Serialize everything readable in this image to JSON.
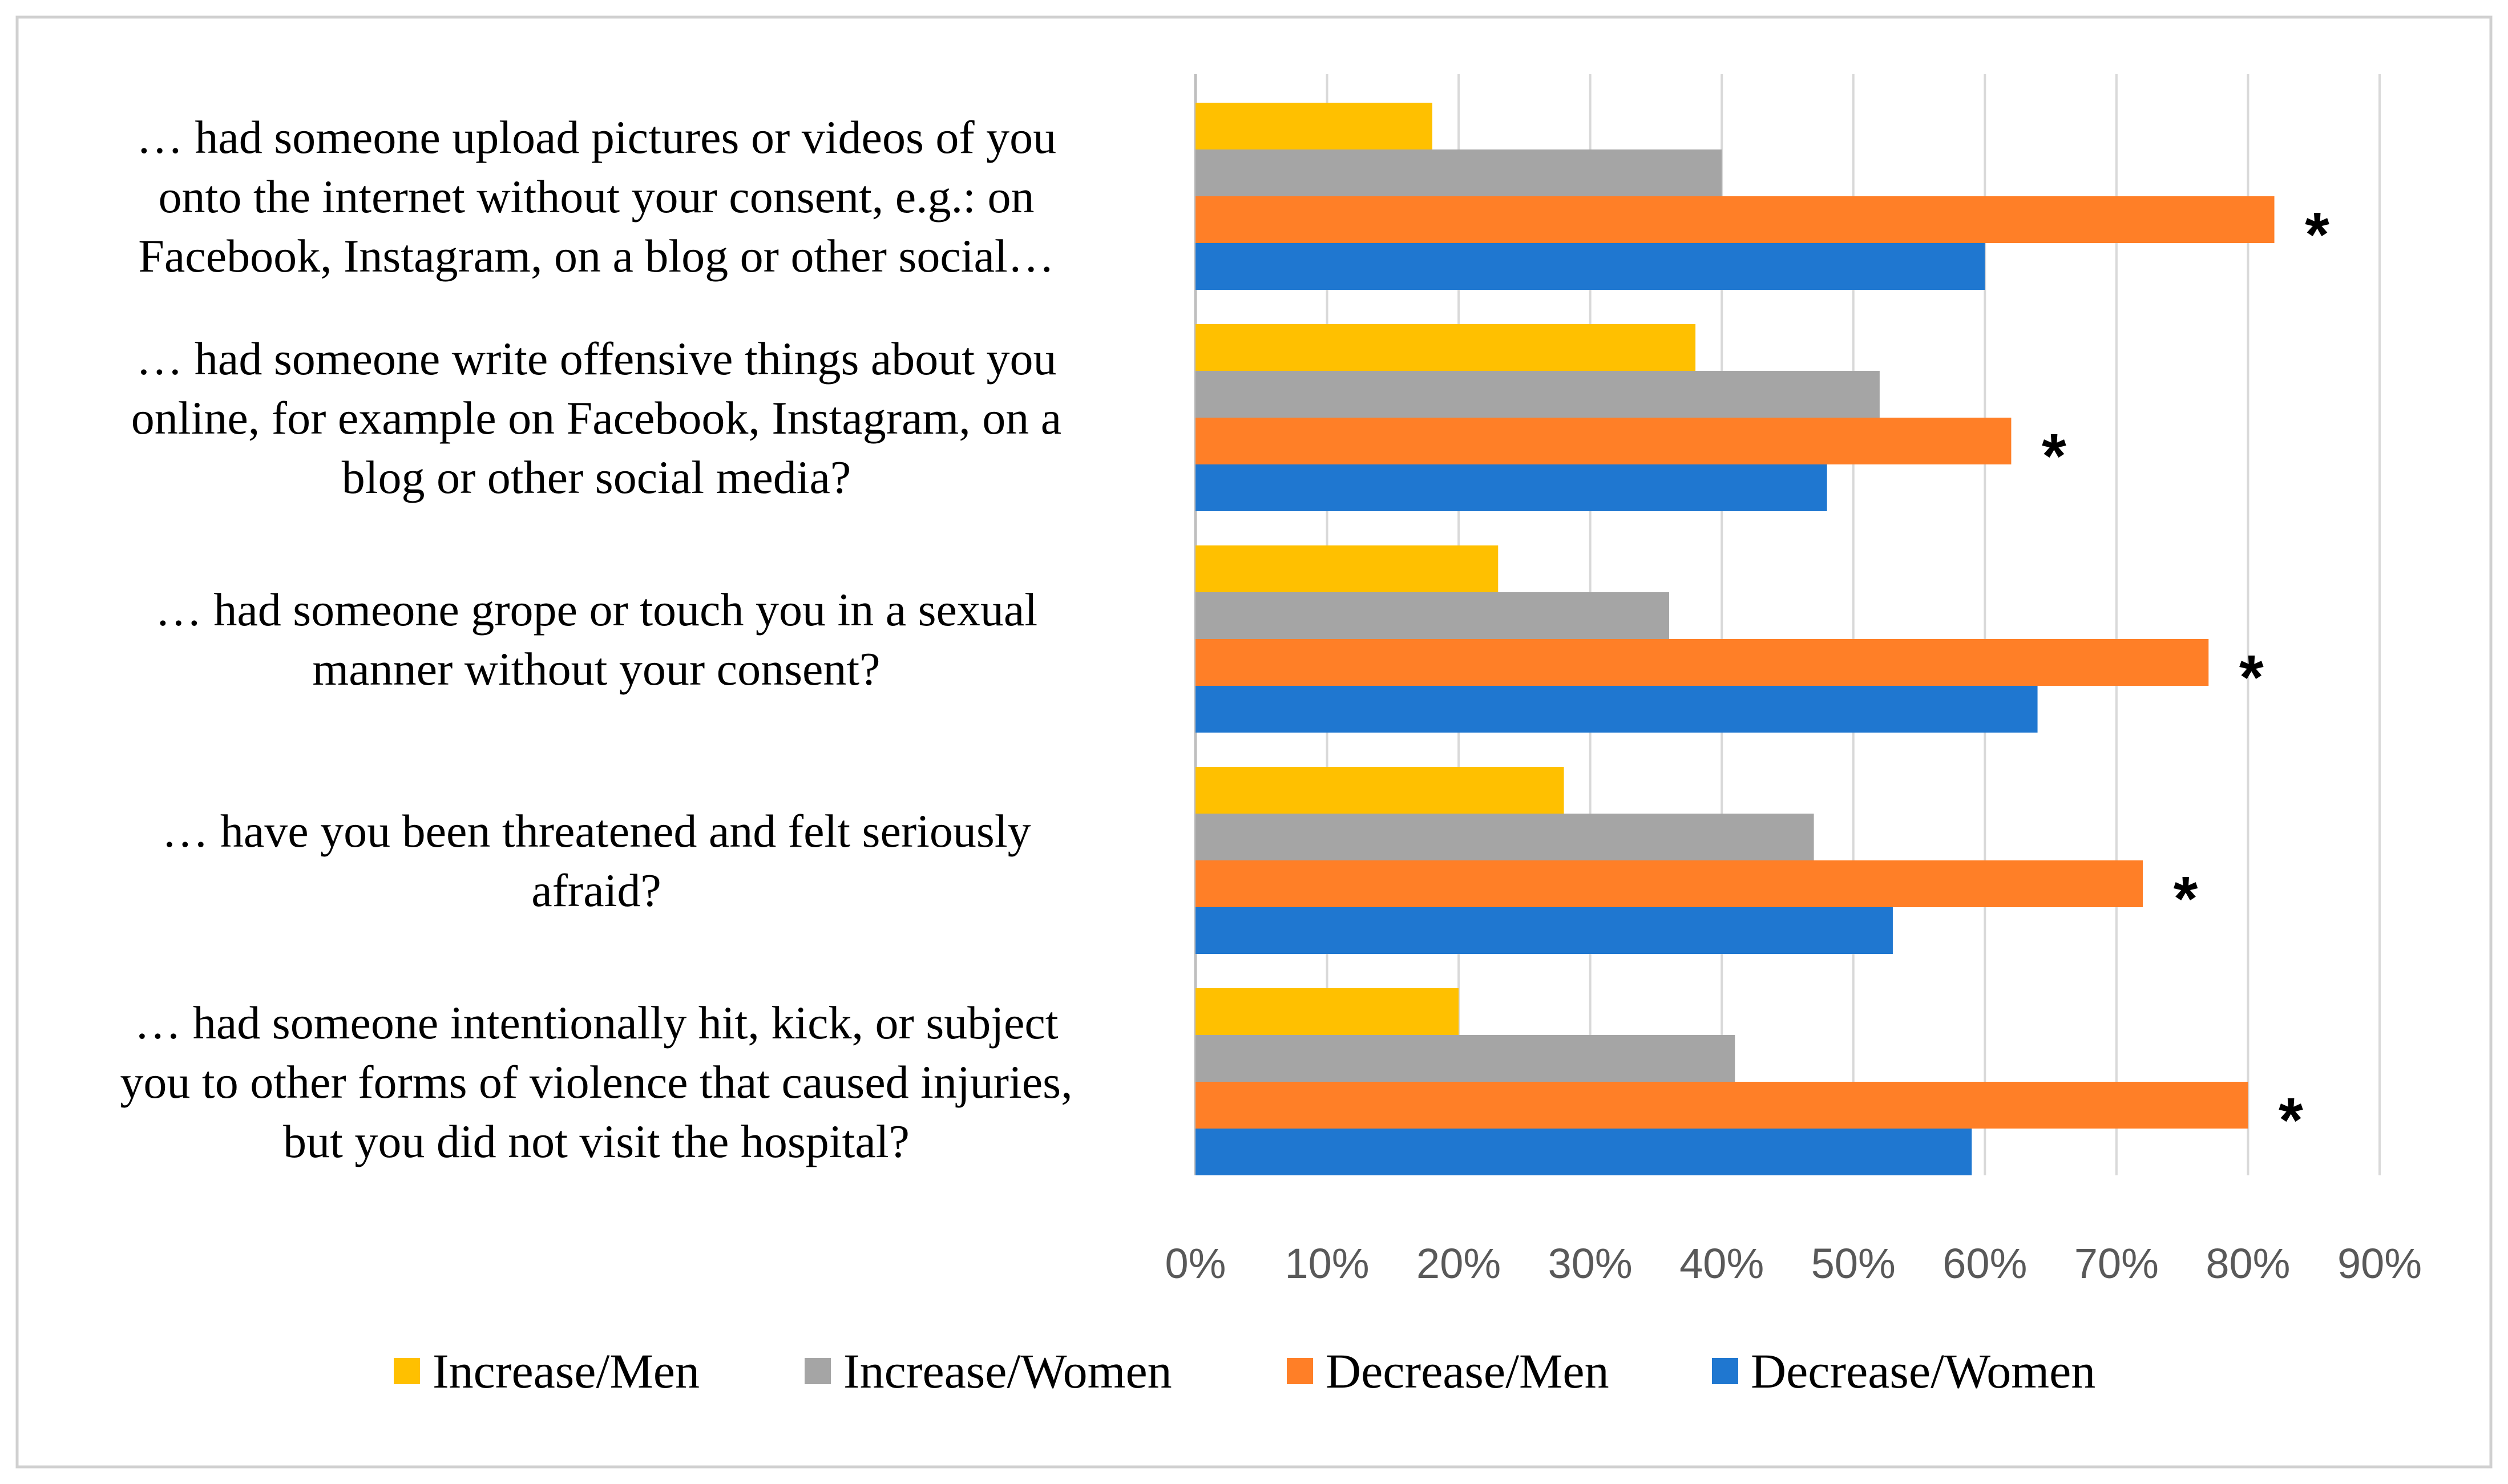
{
  "chart_data": {
    "type": "bar",
    "orientation": "horizontal",
    "categories": [
      [
        "… had someone upload pictures or videos of you",
        "onto the internet without your consent, e.g.: on",
        "Facebook, Instagram, on a blog or other social…"
      ],
      [
        "… had someone write offensive things about you",
        "online, for example on Facebook, Instagram, on a",
        "blog or other social media?"
      ],
      [
        "… had someone grope or touch you in a sexual",
        "manner without your consent?"
      ],
      [
        "… have you been threatened and felt seriously",
        "afraid?"
      ],
      [
        "… had someone intentionally hit, kick, or subject",
        "you to other forms of violence that caused injuries,",
        "but you did not visit the hospital?"
      ]
    ],
    "series": [
      {
        "name": "Increase/Men",
        "color": "#FFC000",
        "values": [
          18,
          38,
          23,
          28,
          20
        ]
      },
      {
        "name": "Increase/Women",
        "color": "#A5A5A5",
        "values": [
          40,
          52,
          36,
          47,
          41
        ]
      },
      {
        "name": "Decrease/Men",
        "color": "#FF7F27",
        "values": [
          82,
          62,
          77,
          72,
          80
        ]
      },
      {
        "name": "Decrease/Women",
        "color": "#1F77D0",
        "values": [
          60,
          48,
          64,
          53,
          59
        ]
      }
    ],
    "significance_marker": "*",
    "significant": [
      true,
      true,
      true,
      true,
      true
    ],
    "xlim": [
      0,
      90
    ],
    "xticks": [
      "0%",
      "10%",
      "20%",
      "30%",
      "40%",
      "50%",
      "60%",
      "70%",
      "80%",
      "90%"
    ],
    "grid": true,
    "legend_position": "bottom",
    "title": "",
    "xlabel": "",
    "ylabel": ""
  }
}
